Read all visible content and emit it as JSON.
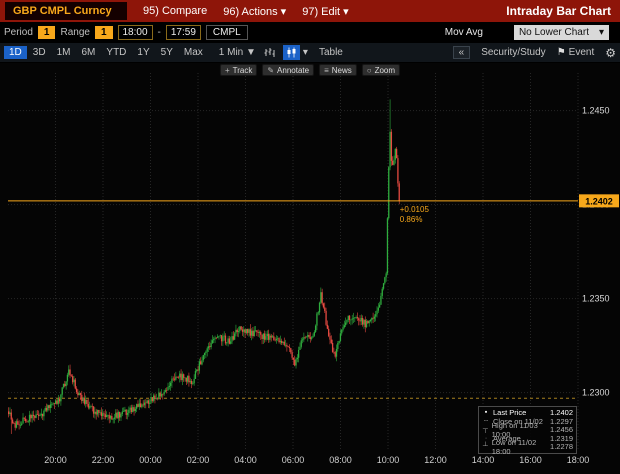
{
  "header": {
    "security": "GBP CMPL Curncy",
    "compare": "95) Compare",
    "actions": "96) Actions ▾",
    "edit": "97) Edit ▾",
    "screen_title": "Intraday Bar Chart"
  },
  "settings_bar": {
    "period_label": "Period",
    "period_value": "1",
    "range_label": "Range",
    "range_value": "1",
    "time_start": "18:00",
    "time_sep": "-",
    "time_end": "17:59",
    "field": "CMPL",
    "mov_avg": "Mov Avg",
    "lower_chart": "No Lower Chart",
    "lower_caret": "▾"
  },
  "chart_toolbar": {
    "range_tabs": [
      "1D",
      "3D",
      "1M",
      "6M",
      "YTD",
      "1Y",
      "5Y",
      "Max"
    ],
    "active_tab": "1D",
    "interval": "1 Min ▼",
    "chart_type_caret": "▾",
    "table_label": "Table",
    "collapse": "«",
    "security_study": "Security/Study",
    "event_flag": "⚑",
    "event": "Event",
    "gear": "⚙"
  },
  "chart_tools": [
    {
      "icon": "+",
      "label": "Track"
    },
    {
      "icon": "✎",
      "label": "Annotate"
    },
    {
      "icon": "≡",
      "label": "News"
    },
    {
      "icon": "○",
      "label": "Zoom"
    }
  ],
  "chart_data": {
    "type": "candlestick-intraday",
    "title": "Intraday Bar Chart",
    "security": "GBP CMPL Curncy",
    "interval": "1 Min",
    "x_ticks": [
      "20:00",
      "22:00",
      "00:00",
      "02:00",
      "04:00",
      "06:00",
      "08:00",
      "10:00",
      "12:00",
      "14:00",
      "16:00",
      "18:00"
    ],
    "x_tick_hours": [
      2,
      4,
      6,
      8,
      10,
      12,
      14,
      16,
      18,
      20,
      22,
      24
    ],
    "y_ticks": [
      1.23,
      1.235,
      1.24,
      1.245
    ],
    "ylim": [
      1.227,
      1.247
    ],
    "session_hours": 24,
    "end_hour": 16.5,
    "bars": 300,
    "last_price": 1.2402,
    "close_prev": 1.2297,
    "high": 1.2456,
    "high_time": "11/03 10:00",
    "average": 1.2319,
    "low": 1.2278,
    "low_time": "11/02 18:00",
    "change": "+0.0105",
    "change_pct": "0.86%",
    "accent": "#f7a81b",
    "close_line_color": "#a8821e",
    "up_color": "#2fae3e",
    "down_color": "#e64a41",
    "waypoints": [
      [
        0,
        1.229
      ],
      [
        0.3,
        1.2283
      ],
      [
        0.8,
        1.2286
      ],
      [
        1.5,
        1.2289
      ],
      [
        2.2,
        1.2297
      ],
      [
        2.6,
        1.2312
      ],
      [
        3.0,
        1.2299
      ],
      [
        3.6,
        1.2291
      ],
      [
        4.3,
        1.2286
      ],
      [
        5.0,
        1.229
      ],
      [
        5.8,
        1.2294
      ],
      [
        6.5,
        1.23
      ],
      [
        7.2,
        1.2309
      ],
      [
        7.8,
        1.2306
      ],
      [
        8.3,
        1.2322
      ],
      [
        8.8,
        1.2331
      ],
      [
        9.3,
        1.2327
      ],
      [
        9.8,
        1.2334
      ],
      [
        10.5,
        1.2331
      ],
      [
        11.2,
        1.2329
      ],
      [
        11.8,
        1.2324
      ],
      [
        12.1,
        1.2316
      ],
      [
        12.5,
        1.2331
      ],
      [
        12.9,
        1.233
      ],
      [
        13.2,
        1.2353
      ],
      [
        13.5,
        1.2332
      ],
      [
        13.8,
        1.2319
      ],
      [
        14.2,
        1.2338
      ],
      [
        14.7,
        1.2341
      ],
      [
        15.1,
        1.2336
      ],
      [
        15.6,
        1.2344
      ],
      [
        15.95,
        1.2365
      ],
      [
        16.1,
        1.2442
      ],
      [
        16.2,
        1.2418
      ],
      [
        16.35,
        1.2432
      ],
      [
        16.5,
        1.2402
      ]
    ]
  },
  "legend": {
    "rows": [
      {
        "marker": "▪",
        "label": "Last Price",
        "value": "1.2402"
      },
      {
        "marker": "┄",
        "label": "Close on 11/02",
        "value": "1.2297"
      },
      {
        "marker": "┬",
        "label": "High on 11/03 10:00",
        "value": "1.2456"
      },
      {
        "marker": "·",
        "label": "Average",
        "value": "1.2319"
      },
      {
        "marker": "┴",
        "label": "Low on 11/02 18:00",
        "value": "1.2278"
      }
    ]
  }
}
